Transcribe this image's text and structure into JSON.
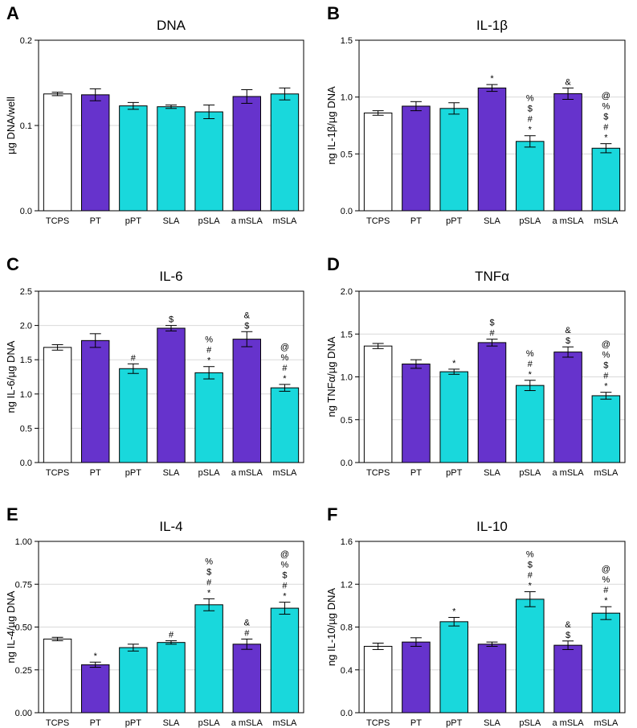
{
  "colors": {
    "ctrl": "#ffffff",
    "purple": "#6633cc",
    "cyan": "#19d8dc",
    "stroke": "#000000",
    "grid": "#d9d9d9"
  },
  "chart_data": [
    {
      "panel": "A",
      "type": "bar",
      "title": "DNA",
      "ylabel": "µg DNA/well",
      "xlabel": "",
      "categories": [
        "TCPS",
        "PT",
        "pPT",
        "SLA",
        "pSLA",
        "a mSLA",
        "mSLA"
      ],
      "fill": [
        "ctrl",
        "purple",
        "cyan",
        "cyan",
        "cyan",
        "purple",
        "cyan"
      ],
      "values": [
        0.137,
        0.136,
        0.123,
        0.122,
        0.116,
        0.134,
        0.137
      ],
      "errors": [
        0.002,
        0.007,
        0.004,
        0.002,
        0.008,
        0.008,
        0.007
      ],
      "annotations": [
        [],
        [],
        [],
        [],
        [],
        [],
        []
      ],
      "ylim": [
        0,
        0.2
      ],
      "yticks": [
        0,
        0.1,
        0.2
      ],
      "ytick_labels": [
        "0.0",
        "0.1",
        "0.2"
      ],
      "grid": true
    },
    {
      "panel": "B",
      "type": "bar",
      "title": "IL-1β",
      "ylabel": "ng IL-1β/µg DNA",
      "xlabel": "",
      "categories": [
        "TCPS",
        "PT",
        "pPT",
        "SLA",
        "pSLA",
        "a mSLA",
        "mSLA"
      ],
      "fill": [
        "ctrl",
        "purple",
        "cyan",
        "purple",
        "cyan",
        "purple",
        "cyan"
      ],
      "values": [
        0.86,
        0.92,
        0.9,
        1.08,
        0.61,
        1.03,
        0.55
      ],
      "errors": [
        0.02,
        0.04,
        0.05,
        0.03,
        0.05,
        0.05,
        0.04
      ],
      "annotations": [
        [],
        [],
        [],
        [
          "*"
        ],
        [
          "%",
          "$",
          "#",
          "*"
        ],
        [
          "&"
        ],
        [
          "@",
          "%",
          "$",
          "#",
          "*"
        ]
      ],
      "ylim": [
        0,
        1.5
      ],
      "yticks": [
        0,
        0.5,
        1.0,
        1.5
      ],
      "ytick_labels": [
        "0.0",
        "0.5",
        "1.0",
        "1.5"
      ],
      "grid": true
    },
    {
      "panel": "C",
      "type": "bar",
      "title": "IL-6",
      "ylabel": "ng IL-6/µg DNA",
      "xlabel": "",
      "categories": [
        "TCPS",
        "PT",
        "pPT",
        "SLA",
        "pSLA",
        "a mSLA",
        "mSLA"
      ],
      "fill": [
        "ctrl",
        "purple",
        "cyan",
        "purple",
        "cyan",
        "purple",
        "cyan"
      ],
      "values": [
        1.68,
        1.78,
        1.37,
        1.96,
        1.31,
        1.8,
        1.09
      ],
      "errors": [
        0.04,
        0.1,
        0.07,
        0.04,
        0.09,
        0.11,
        0.05
      ],
      "annotations": [
        [],
        [],
        [
          "#"
        ],
        [
          "$"
        ],
        [
          "%",
          "#",
          "*"
        ],
        [
          "&",
          "$"
        ],
        [
          "@",
          "%",
          "#",
          "*"
        ]
      ],
      "ylim": [
        0,
        2.5
      ],
      "yticks": [
        0,
        0.5,
        1.0,
        1.5,
        2.0,
        2.5
      ],
      "ytick_labels": [
        "0.0",
        "0.5",
        "1.0",
        "1.5",
        "2.0",
        "2.5"
      ],
      "grid": true
    },
    {
      "panel": "D",
      "type": "bar",
      "title": "TNFα",
      "ylabel": "ng TNFα/µg DNA",
      "xlabel": "",
      "categories": [
        "TCPS",
        "PT",
        "pPT",
        "SLA",
        "pSLA",
        "a mSLA",
        "mSLA"
      ],
      "fill": [
        "ctrl",
        "purple",
        "cyan",
        "purple",
        "cyan",
        "purple",
        "cyan"
      ],
      "values": [
        1.36,
        1.15,
        1.06,
        1.4,
        0.9,
        1.29,
        0.78
      ],
      "errors": [
        0.03,
        0.05,
        0.03,
        0.04,
        0.06,
        0.06,
        0.04
      ],
      "annotations": [
        [],
        [],
        [
          "*"
        ],
        [
          "$",
          "#"
        ],
        [
          "%",
          "#",
          "*"
        ],
        [
          "&",
          "$"
        ],
        [
          "@",
          "%",
          "$",
          "#",
          "*"
        ]
      ],
      "ylim": [
        0,
        2.0
      ],
      "yticks": [
        0,
        0.5,
        1.0,
        1.5,
        2.0
      ],
      "ytick_labels": [
        "0.0",
        "0.5",
        "1.0",
        "1.5",
        "2.0"
      ],
      "grid": true
    },
    {
      "panel": "E",
      "type": "bar",
      "title": "IL-4",
      "ylabel": "ng IL-4/µg DNA",
      "xlabel": "",
      "categories": [
        "TCPS",
        "PT",
        "pPT",
        "SLA",
        "pSLA",
        "a mSLA",
        "mSLA"
      ],
      "fill": [
        "ctrl",
        "purple",
        "cyan",
        "cyan",
        "cyan",
        "purple",
        "cyan"
      ],
      "values": [
        0.43,
        0.28,
        0.38,
        0.41,
        0.63,
        0.4,
        0.61
      ],
      "errors": [
        0.01,
        0.015,
        0.02,
        0.01,
        0.035,
        0.03,
        0.035
      ],
      "annotations": [
        [],
        [
          "*"
        ],
        [],
        [
          "#"
        ],
        [
          "%",
          "$",
          "#",
          "*"
        ],
        [
          "&",
          "#"
        ],
        [
          "@",
          "%",
          "$",
          "#",
          "*"
        ]
      ],
      "ylim": [
        0,
        1.0
      ],
      "yticks": [
        0,
        0.25,
        0.5,
        0.75,
        1.0
      ],
      "ytick_labels": [
        "0.00",
        "0.25",
        "0.50",
        "0.75",
        "1.00"
      ],
      "grid": true
    },
    {
      "panel": "F",
      "type": "bar",
      "title": "IL-10",
      "ylabel": "ng IL-10/µg DNA",
      "xlabel": "",
      "categories": [
        "TCPS",
        "PT",
        "pPT",
        "SLA",
        "pSLA",
        "a mSLA",
        "mSLA"
      ],
      "fill": [
        "ctrl",
        "purple",
        "cyan",
        "purple",
        "cyan",
        "purple",
        "cyan"
      ],
      "values": [
        0.62,
        0.66,
        0.85,
        0.64,
        1.06,
        0.63,
        0.93
      ],
      "errors": [
        0.03,
        0.04,
        0.04,
        0.02,
        0.07,
        0.04,
        0.06
      ],
      "annotations": [
        [],
        [],
        [
          "*"
        ],
        [],
        [
          "%",
          "$",
          "#",
          "*"
        ],
        [
          "&",
          "$"
        ],
        [
          "@",
          "%",
          "#",
          "*"
        ]
      ],
      "ylim": [
        0,
        1.6
      ],
      "yticks": [
        0,
        0.4,
        0.8,
        1.2,
        1.6
      ],
      "ytick_labels": [
        "0.0",
        "0.4",
        "0.8",
        "1.2",
        "1.6"
      ],
      "grid": true
    }
  ]
}
